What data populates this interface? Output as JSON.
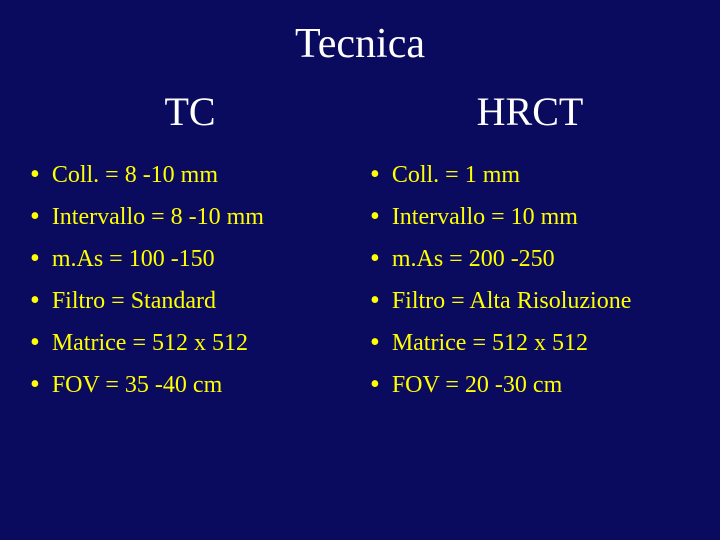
{
  "slide": {
    "title": "Tecnica",
    "background_color": "#0a0a5e",
    "title_color": "#ffffff",
    "title_fontsize": 42,
    "heading_color": "#ffffff",
    "heading_fontsize": 40,
    "bullet_color": "#ffff00",
    "bullet_fontsize": 24,
    "font_family": "Times New Roman",
    "columns": [
      {
        "heading": "TC",
        "items": [
          "Coll. = 8 -10 mm",
          "Intervallo = 8 -10 mm",
          "m.As = 100 -150",
          "Filtro = Standard",
          "Matrice = 512 x 512",
          "FOV = 35 -40 cm"
        ]
      },
      {
        "heading": "HRCT",
        "items": [
          "Coll. = 1 mm",
          "Intervallo = 10 mm",
          "m.As = 200 -250",
          "Filtro = Alta Risoluzione",
          "Matrice = 512 x 512",
          "FOV = 20 -30 cm"
        ]
      }
    ]
  }
}
